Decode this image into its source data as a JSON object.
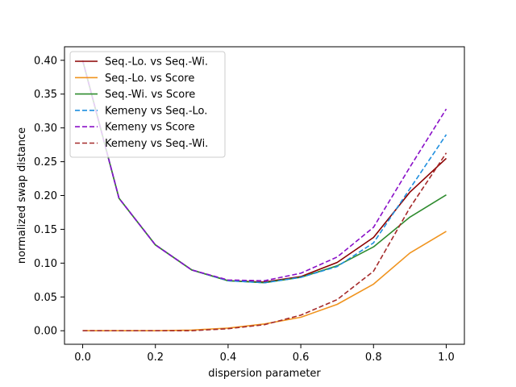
{
  "chart_data": {
    "type": "line",
    "xlabel": "dispersion parameter",
    "ylabel": "normalized swap distance",
    "xlim": [
      -0.05,
      1.05
    ],
    "ylim": [
      -0.02,
      0.42
    ],
    "xticks": [
      0.0,
      0.2,
      0.4,
      0.6,
      0.8,
      1.0
    ],
    "yticks": [
      0.0,
      0.05,
      0.1,
      0.15,
      0.2,
      0.25,
      0.3,
      0.35,
      0.4
    ],
    "xtick_labels": [
      "0.0",
      "0.2",
      "0.4",
      "0.6",
      "0.8",
      "1.0"
    ],
    "ytick_labels": [
      "0.00",
      "0.05",
      "0.10",
      "0.15",
      "0.20",
      "0.25",
      "0.30",
      "0.35",
      "0.40"
    ],
    "grid": false,
    "legend_position": "top-left",
    "x": [
      0.0,
      0.1,
      0.2,
      0.3,
      0.4,
      0.5,
      0.6,
      0.7,
      0.8,
      0.9,
      1.0
    ],
    "series": [
      {
        "name": "Seq.-Lo. vs Seq.-Wi.",
        "color": "#8b0000",
        "dash": false,
        "values": [
          0.4,
          0.196,
          0.127,
          0.09,
          0.074,
          0.072,
          0.08,
          0.101,
          0.138,
          0.205,
          0.255
        ]
      },
      {
        "name": "Seq.-Lo. vs Score",
        "color": "#f0941f",
        "dash": false,
        "values": [
          0.0,
          0.0,
          0.0,
          0.001,
          0.004,
          0.01,
          0.02,
          0.039,
          0.069,
          0.115,
          0.147
        ]
      },
      {
        "name": "Seq.-Wi. vs Score",
        "color": "#2e8b2e",
        "dash": false,
        "values": [
          0.4,
          0.196,
          0.127,
          0.09,
          0.074,
          0.071,
          0.079,
          0.096,
          0.124,
          0.168,
          0.201
        ]
      },
      {
        "name": "Kemeny vs Seq.-Lo.",
        "color": "#1f8fdf",
        "dash": true,
        "values": [
          0.4,
          0.196,
          0.127,
          0.09,
          0.074,
          0.071,
          0.079,
          0.095,
          0.13,
          0.21,
          0.29
        ]
      },
      {
        "name": "Kemeny vs Score",
        "color": "#8a10c8",
        "dash": true,
        "values": [
          0.4,
          0.196,
          0.127,
          0.09,
          0.075,
          0.074,
          0.085,
          0.109,
          0.153,
          0.242,
          0.328
        ]
      },
      {
        "name": "Kemeny vs Seq.-Wi.",
        "color": "#a52a2a",
        "dash": true,
        "values": [
          0.0,
          0.0,
          0.0,
          0.0,
          0.003,
          0.009,
          0.023,
          0.046,
          0.088,
          0.182,
          0.263
        ]
      }
    ]
  }
}
